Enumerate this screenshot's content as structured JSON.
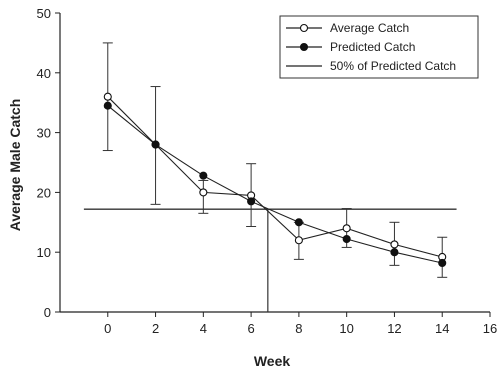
{
  "chart_data": {
    "type": "line",
    "xlabel": "Week",
    "ylabel": "Average Male Catch",
    "xlim": [
      -2,
      16
    ],
    "ylim": [
      0,
      50
    ],
    "xticks": [
      0,
      2,
      4,
      6,
      8,
      10,
      12,
      14,
      16
    ],
    "yticks": [
      0,
      10,
      20,
      30,
      40,
      50
    ],
    "x": [
      0,
      2,
      4,
      6,
      8,
      10,
      12,
      14
    ],
    "series": [
      {
        "name": "Average Catch",
        "marker": "open-circle",
        "values": [
          36,
          28,
          20,
          19.5,
          12,
          14,
          11.3,
          9.2
        ],
        "error_low": [
          27,
          18,
          16.5,
          14.3,
          8.8,
          10.8,
          7.8,
          5.8
        ],
        "error_high": [
          45,
          37.7,
          22,
          24.8,
          15,
          17.3,
          15,
          12.5
        ]
      },
      {
        "name": "Predicted Catch",
        "marker": "filled-circle",
        "values": [
          34.5,
          28,
          22.8,
          18.5,
          15,
          12.2,
          10,
          8.2
        ]
      }
    ],
    "reference_lines": [
      {
        "name": "50% of Predicted Catch",
        "y": 17.2,
        "x_range": [
          -1,
          14.6
        ],
        "x_drop": 6.7
      }
    ],
    "grid": false,
    "legend": {
      "position": "top-right",
      "entries": [
        "Average Catch",
        "Predicted Catch",
        "50% of Predicted Catch"
      ]
    }
  }
}
